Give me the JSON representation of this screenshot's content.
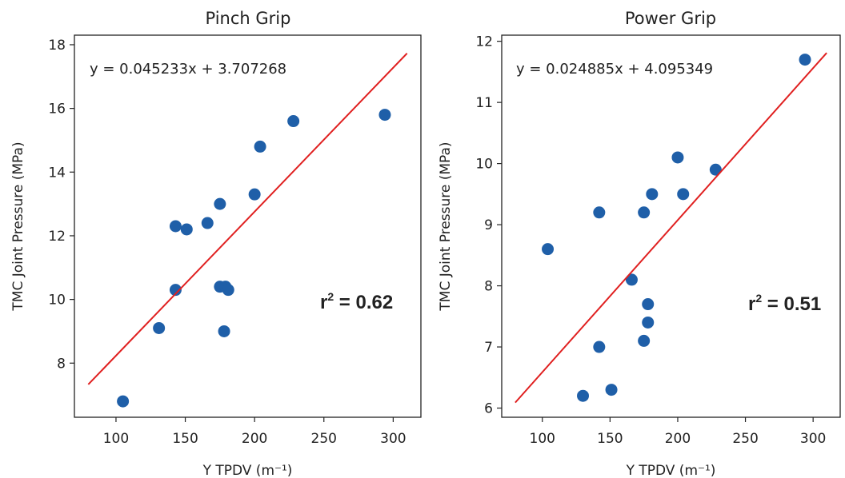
{
  "chart_data": [
    {
      "type": "scatter",
      "title": "Pinch Grip",
      "xlabel": "Υ TPDV (m⁻¹)",
      "ylabel": "TMC Joint Pressure (MPa)",
      "xlim": [
        70,
        320
      ],
      "ylim": [
        6.3,
        18.3
      ],
      "xticks": [
        100,
        150,
        200,
        250,
        300
      ],
      "yticks": [
        8,
        10,
        12,
        14,
        16,
        18
      ],
      "grid": false,
      "series": [
        {
          "marker_color": "#1f5fa8",
          "points": [
            {
              "x": 105,
              "y": 6.8
            },
            {
              "x": 131,
              "y": 9.1
            },
            {
              "x": 143,
              "y": 10.3
            },
            {
              "x": 143,
              "y": 12.3
            },
            {
              "x": 151,
              "y": 12.2
            },
            {
              "x": 166,
              "y": 12.4
            },
            {
              "x": 175,
              "y": 13.0
            },
            {
              "x": 175,
              "y": 10.4
            },
            {
              "x": 178,
              "y": 9.0
            },
            {
              "x": 179,
              "y": 10.4
            },
            {
              "x": 181,
              "y": 10.3
            },
            {
              "x": 200,
              "y": 13.3
            },
            {
              "x": 204,
              "y": 14.8
            },
            {
              "x": 228,
              "y": 15.6
            },
            {
              "x": 294,
              "y": 15.8
            }
          ]
        }
      ],
      "fit_line": {
        "x": [
          80,
          310
        ],
        "y": [
          7.33,
          17.73
        ],
        "color": "#e02020"
      },
      "annotations": {
        "equation": "y = 0.045233x + 3.707268",
        "r2_prefix": "r",
        "r2_sup": "2",
        "r2_value": " = 0.62"
      }
    },
    {
      "type": "scatter",
      "title": "Power Grip",
      "xlabel": "Υ TPDV (m⁻¹)",
      "ylabel": "TMC Joint Pressure (MPa)",
      "xlim": [
        70,
        320
      ],
      "ylim": [
        5.85,
        12.1
      ],
      "xticks": [
        100,
        150,
        200,
        250,
        300
      ],
      "yticks": [
        6,
        7,
        8,
        9,
        10,
        11,
        12
      ],
      "grid": false,
      "series": [
        {
          "marker_color": "#1f5fa8",
          "points": [
            {
              "x": 104,
              "y": 8.6
            },
            {
              "x": 130,
              "y": 6.2
            },
            {
              "x": 142,
              "y": 9.2
            },
            {
              "x": 142,
              "y": 7.0
            },
            {
              "x": 151,
              "y": 6.3
            },
            {
              "x": 166,
              "y": 8.1
            },
            {
              "x": 175,
              "y": 9.2
            },
            {
              "x": 175,
              "y": 7.1
            },
            {
              "x": 178,
              "y": 7.7
            },
            {
              "x": 178,
              "y": 7.4
            },
            {
              "x": 181,
              "y": 9.5
            },
            {
              "x": 200,
              "y": 10.1
            },
            {
              "x": 204,
              "y": 9.5
            },
            {
              "x": 228,
              "y": 9.9
            },
            {
              "x": 294,
              "y": 11.7
            }
          ]
        }
      ],
      "fit_line": {
        "x": [
          80,
          310
        ],
        "y": [
          6.09,
          11.81
        ],
        "color": "#e02020"
      },
      "annotations": {
        "equation": "y = 0.024885x + 4.095349",
        "r2_prefix": "r",
        "r2_sup": "2",
        "r2_value": " = 0.51"
      }
    }
  ]
}
